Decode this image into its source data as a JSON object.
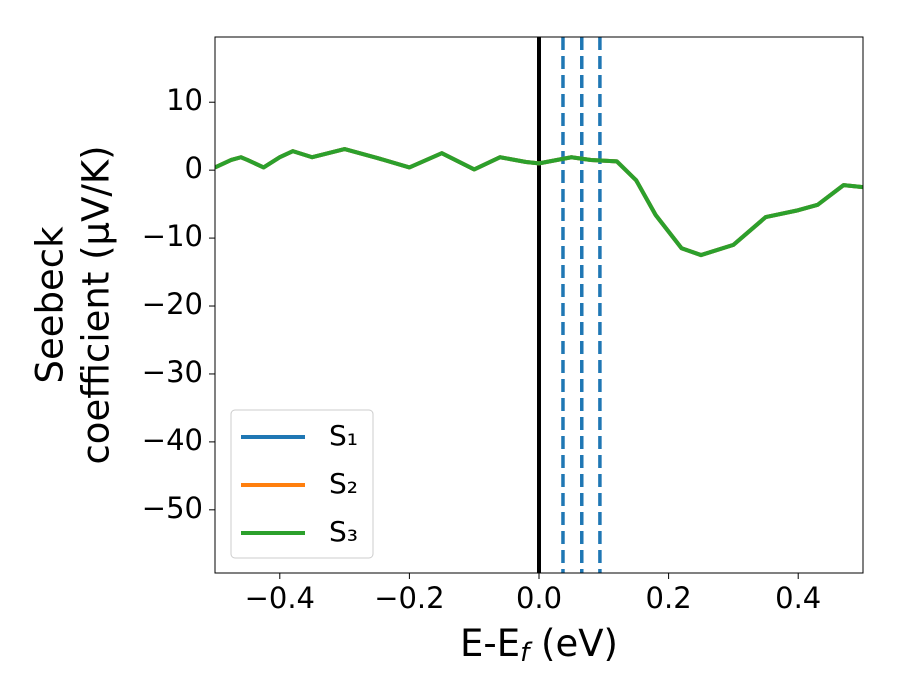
{
  "chart_data": {
    "type": "line",
    "xlabel": [
      "E-E",
      "f",
      " (eV)"
    ],
    "ylabel": [
      "Seebeck",
      "coefficient  (μV/K)"
    ],
    "x": [
      -0.5,
      -0.475,
      -0.46,
      -0.45,
      -0.425,
      -0.4,
      -0.38,
      -0.35,
      -0.3,
      -0.25,
      -0.2,
      -0.15,
      -0.1,
      -0.06,
      -0.02,
      0.0,
      0.05,
      0.08,
      0.12,
      0.15,
      0.18,
      0.22,
      0.25,
      0.3,
      0.35,
      0.4,
      0.43,
      0.47,
      0.5
    ],
    "series": [
      {
        "name": "S₁",
        "color": "#1f77b4",
        "values": [
          0.4,
          1.5,
          1.9,
          1.5,
          0.4,
          1.9,
          2.8,
          1.9,
          3.1,
          1.8,
          0.4,
          2.5,
          0.1,
          1.9,
          1.2,
          1.0,
          1.9,
          1.5,
          1.3,
          -1.5,
          -6.6,
          -11.5,
          -12.5,
          -11,
          -6.9,
          -5.9,
          -5.1,
          -2.2,
          -2.5
        ]
      },
      {
        "name": "S₂",
        "color": "#ff7f0e",
        "values": [
          0.4,
          1.5,
          1.9,
          1.5,
          0.4,
          1.9,
          2.8,
          1.9,
          3.1,
          1.8,
          0.4,
          2.5,
          0.1,
          1.9,
          1.2,
          1.0,
          1.9,
          1.5,
          1.3,
          -1.5,
          -6.6,
          -11.5,
          -12.5,
          -11,
          -6.9,
          -5.9,
          -5.1,
          -2.2,
          -2.5
        ]
      },
      {
        "name": "S₃",
        "color": "#2ca02c",
        "values": [
          0.4,
          1.5,
          1.9,
          1.5,
          0.4,
          1.9,
          2.8,
          1.9,
          3.1,
          1.8,
          0.4,
          2.5,
          0.1,
          1.9,
          1.2,
          1.0,
          1.9,
          1.5,
          1.3,
          -1.5,
          -6.6,
          -11.5,
          -12.5,
          -11,
          -6.9,
          -5.9,
          -5.1,
          -2.2,
          -2.5
        ]
      }
    ],
    "vlines": [
      {
        "x": 0.0,
        "color": "#000000",
        "style": "solid"
      },
      {
        "x": 0.037,
        "color": "#1f77b4",
        "style": "dashed"
      },
      {
        "x": 0.066,
        "color": "#1f77b4",
        "style": "dashed"
      },
      {
        "x": 0.094,
        "color": "#1f77b4",
        "style": "dashed"
      }
    ],
    "xlim": [
      -0.5,
      0.5
    ],
    "xticks": [
      {
        "value": -0.4,
        "label": "−0.4"
      },
      {
        "value": -0.2,
        "label": "−0.2"
      },
      {
        "value": 0.0,
        "label": "0.0"
      },
      0.2,
      0.4
    ],
    "ylim": [
      -59.3,
      19.6
    ],
    "yticks": [
      10,
      0,
      {
        "value": -10,
        "label": "−10"
      },
      {
        "value": -20,
        "label": "−20"
      },
      {
        "value": -30,
        "label": "−30"
      },
      {
        "value": -40,
        "label": "−40"
      },
      {
        "value": -50,
        "label": "−50"
      }
    ],
    "grid": false,
    "legend": "lower left"
  }
}
